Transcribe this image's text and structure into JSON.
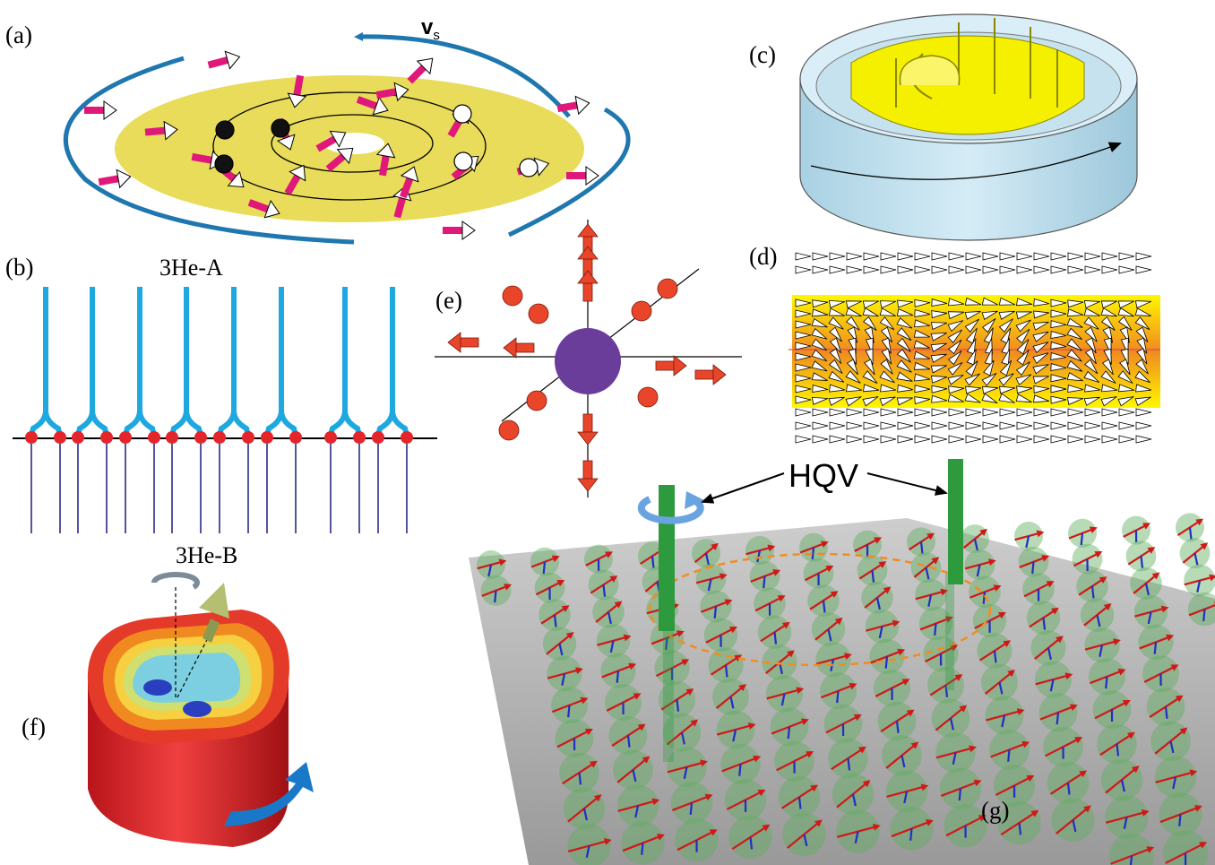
{
  "panels": {
    "a": {
      "label": "(a)",
      "velocity_label": "v",
      "velocity_subscript": "s"
    },
    "b": {
      "label": "(b)",
      "top_phase": "3He-A",
      "bottom_phase": "3He-B"
    },
    "c": {
      "label": "(c)"
    },
    "d": {
      "label": "(d)"
    },
    "e": {
      "label": "(e)"
    },
    "f": {
      "label": "(f)"
    },
    "g": {
      "label": "(g)",
      "hqv_label": "HQV"
    }
  },
  "colors": {
    "magenta": "#e0187a",
    "yellow_disk": "#e8dc5a",
    "blue_arrow": "#1f77b0",
    "cyan_lines": "#1ea8e0",
    "navy_lines": "#2a2a8a",
    "red_dots": "#e3262b",
    "purple_ball": "#6a3d9a",
    "green_rod": "#2e9a3e",
    "cyl_blue": "#bfe0ee",
    "cyl_yellow": "#f4f000"
  }
}
